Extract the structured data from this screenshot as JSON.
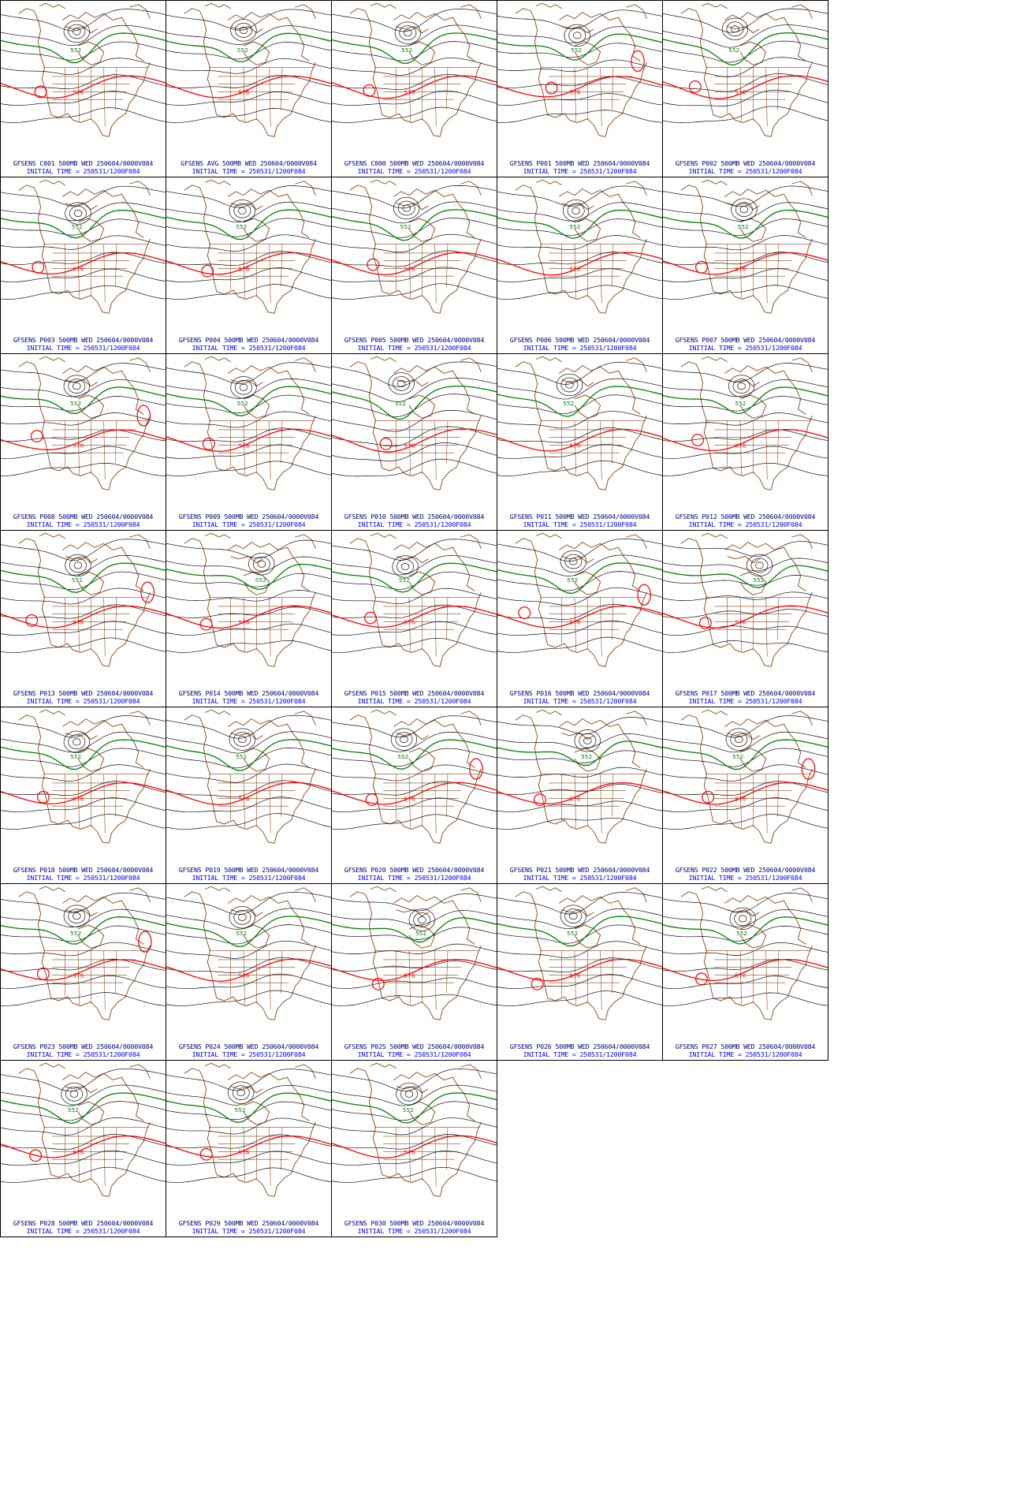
{
  "colors": {
    "coast": "#8b4513",
    "contour": "#000000",
    "c552": "#008000",
    "c576": "#ff0000",
    "low": "#1e90ff",
    "caption": "#000080",
    "caption_time": "#0000ff"
  },
  "contour_labels": {
    "green": "552",
    "red": "576"
  },
  "panels": [
    {
      "caption": "GFSENS C001 500MB WED 250604/0000V084",
      "init": "INITIAL TIME = 250531/1200F084"
    },
    {
      "caption": "GFSENS AVG 500MB WED 250604/0000V084",
      "init": "INITIAL TIME = 250531/1200F084"
    },
    {
      "caption": "GFSENS C000 500MB WED 250604/0000V084",
      "init": "INITIAL TIME = 250531/1200F084"
    },
    {
      "caption": "GFSENS P001 500MB WED 250604/0000V084",
      "init": "INITIAL TIME = 250531/1200F084"
    },
    {
      "caption": "GFSENS P002 500MB WED 250604/0000V084",
      "init": "INITIAL TIME = 250531/1200F084"
    },
    {
      "caption": "GFSENS P003 500MB WED 250604/0000V084",
      "init": "INITIAL TIME = 250531/1200F084"
    },
    {
      "caption": "GFSENS P004 500MB WED 250604/0000V084",
      "init": "INITIAL TIME = 250531/1200F084"
    },
    {
      "caption": "GFSENS P005 500MB WED 250604/0000V084",
      "init": "INITIAL TIME = 250531/1200F084"
    },
    {
      "caption": "GFSENS P006 500MB WED 250604/0000V084",
      "init": "INITIAL TIME = 250531/1200F084"
    },
    {
      "caption": "GFSENS P007 500MB WED 250604/0000V084",
      "init": "INITIAL TIME = 250531/1200F084"
    },
    {
      "caption": "GFSENS P008 500MB WED 250604/0000V084",
      "init": "INITIAL TIME = 250531/1200F084"
    },
    {
      "caption": "GFSENS P009 500MB WED 250604/0000V084",
      "init": "INITIAL TIME = 250531/1200F084"
    },
    {
      "caption": "GFSENS P010 500MB WED 250604/0000V084",
      "init": "INITIAL TIME = 250531/1200F084"
    },
    {
      "caption": "GFSENS P011 500MB WED 250604/0000V084",
      "init": "INITIAL TIME = 250531/1200F084"
    },
    {
      "caption": "GFSENS P012 500MB WED 250604/0000V084",
      "init": "INITIAL TIME = 250531/1200F084"
    },
    {
      "caption": "GFSENS P013 500MB WED 250604/0000V084",
      "init": "INITIAL TIME = 250531/1200F084"
    },
    {
      "caption": "GFSENS P014 500MB WED 250604/0000V084",
      "init": "INITIAL TIME = 250531/1200F084"
    },
    {
      "caption": "GFSENS P015 500MB WED 250604/0000V084",
      "init": "INITIAL TIME = 250531/1200F084"
    },
    {
      "caption": "GFSENS P016 500MB WED 250604/0000V084",
      "init": "INITIAL TIME = 250531/1200F084"
    },
    {
      "caption": "GFSENS P017 500MB WED 250604/0000V084",
      "init": "INITIAL TIME = 250531/1200F084"
    },
    {
      "caption": "GFSENS P018 500MB WED 250604/0000V084",
      "init": "INITIAL TIME = 250531/1200F084"
    },
    {
      "caption": "GFSENS P019 500MB WED 250604/0000V084",
      "init": "INITIAL TIME = 250531/1200F084"
    },
    {
      "caption": "GFSENS P020 500MB WED 250604/0000V084",
      "init": "INITIAL TIME = 250531/1200F084"
    },
    {
      "caption": "GFSENS P021 500MB WED 250604/0000V084",
      "init": "INITIAL TIME = 250531/1200F084"
    },
    {
      "caption": "GFSENS P022 500MB WED 250604/0000V084",
      "init": "INITIAL TIME = 250531/1200F084"
    },
    {
      "caption": "GFSENS P023 500MB WED 250604/0000V084",
      "init": "INITIAL TIME = 250531/1200F084"
    },
    {
      "caption": "GFSENS P024 500MB WED 250604/0000V084",
      "init": "INITIAL TIME = 250531/1200F084"
    },
    {
      "caption": "GFSENS P025 500MB WED 250604/0000V084",
      "init": "INITIAL TIME = 250531/1200F084"
    },
    {
      "caption": "GFSENS P026 500MB WED 250604/0000V084",
      "init": "INITIAL TIME = 250531/1200F084"
    },
    {
      "caption": "GFSENS P027 500MB WED 250604/0000V084",
      "init": "INITIAL TIME = 250531/1200F084"
    },
    {
      "caption": "GFSENS P028 500MB WED 250604/0000V084",
      "init": "INITIAL TIME = 250531/1200F084"
    },
    {
      "caption": "GFSENS P029 500MB WED 250604/0000V084",
      "init": "INITIAL TIME = 250531/1200F084"
    },
    {
      "caption": "GFSENS P030 500MB WED 250604/0000V084",
      "init": "INITIAL TIME = 250531/1200F084"
    }
  ]
}
